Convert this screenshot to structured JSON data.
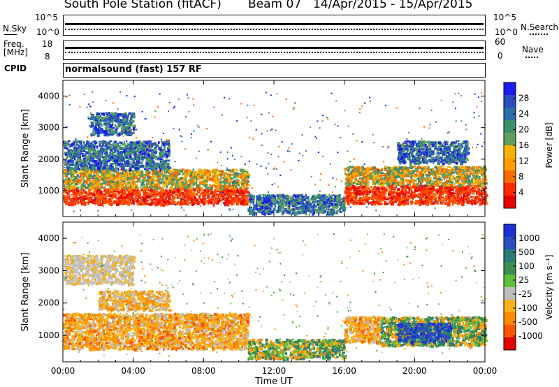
{
  "header": {
    "station": "South Pole Station (fitACF)",
    "beam": "Beam 07",
    "dates": "14/Apr/2015 - 15/Apr/2015"
  },
  "summary_panels": {
    "nsky_label": "N.Sky",
    "nsky_ticks": [
      "10^5",
      "10^0"
    ],
    "nsearch_label": "N.Search",
    "nsearch_ticks": [
      "10^5",
      "10^0"
    ],
    "freq_label_1": "Freq.",
    "freq_label_2": "[MHz]",
    "freq_ticks": [
      "18",
      "8"
    ],
    "nave_label": "Nave",
    "nave_ticks": [
      "60",
      "0"
    ],
    "cpid_label": "CPID",
    "cpid_value": "normalsound (fast) 157 RF"
  },
  "colors": {
    "power_scale": [
      "#1b1bf0",
      "#2a4dbf",
      "#2c6ea8",
      "#3f8f6a",
      "#5fa05a",
      "#f4b400",
      "#ff9c00",
      "#ff6a00",
      "#ff2a00",
      "#e80000"
    ],
    "velocity_scale": [
      "#1a2fd6",
      "#2a4ec0",
      "#2b7a78",
      "#3c8c4f",
      "#5fbf3a",
      "#bdbdbd",
      "#f5b21a",
      "#ff8c00",
      "#ff5500",
      "#e40000"
    ]
  },
  "chart_data": [
    {
      "type": "heatmap",
      "panel": "power",
      "ylabel": "Slant Range [km]",
      "xlabel": "",
      "x_ticks": [
        "00:00",
        "04:00",
        "08:00",
        "12:00",
        "16:00",
        "20:00",
        "00:00"
      ],
      "y_ticks": [
        "1000",
        "2000",
        "3000",
        "4000"
      ],
      "ylim": [
        180,
        4500
      ],
      "xlim_hours": [
        0,
        24
      ],
      "colorbar_label": "Power [dB]",
      "colorbar_ticks": [
        "28",
        "24",
        "20",
        "16",
        "12",
        "8",
        "4"
      ],
      "regions": [
        {
          "t0": 0,
          "t1": 10.5,
          "r0": 600,
          "r1": 1100,
          "level": "high"
        },
        {
          "t0": 0,
          "t1": 10.5,
          "r0": 1100,
          "r1": 1700,
          "level": "mid"
        },
        {
          "t0": 0,
          "t1": 6,
          "r0": 1700,
          "r1": 2600,
          "level": "low"
        },
        {
          "t0": 1.5,
          "t1": 4,
          "r0": 2800,
          "r1": 3500,
          "level": "low"
        },
        {
          "t0": 10.5,
          "t1": 16,
          "r0": 300,
          "r1": 900,
          "level": "low"
        },
        {
          "t0": 16,
          "t1": 24,
          "r0": 600,
          "r1": 1200,
          "level": "high"
        },
        {
          "t0": 16,
          "t1": 24,
          "r0": 1200,
          "r1": 1800,
          "level": "mid"
        },
        {
          "t0": 19,
          "t1": 23,
          "r0": 1900,
          "r1": 2600,
          "level": "low"
        }
      ]
    },
    {
      "type": "heatmap",
      "panel": "velocity",
      "ylabel": "Slant Range [km]",
      "xlabel": "Time UT",
      "x_ticks": [
        "00:00",
        "04:00",
        "08:00",
        "12:00",
        "16:00",
        "20:00",
        "00:00"
      ],
      "y_ticks": [
        "1000",
        "2000",
        "3000",
        "4000"
      ],
      "ylim": [
        180,
        4500
      ],
      "xlim_hours": [
        0,
        24
      ],
      "colorbar_label": "Velocity [m s⁻¹]",
      "colorbar_ticks": [
        "1000",
        "500",
        "100",
        "25",
        "-25",
        "-100",
        "-500",
        "-1000"
      ],
      "regions": [
        {
          "t0": 0,
          "t1": 10.5,
          "r0": 600,
          "r1": 1700,
          "level": "neg"
        },
        {
          "t0": 0,
          "t1": 4,
          "r0": 2600,
          "r1": 3500,
          "level": "zero"
        },
        {
          "t0": 2,
          "t1": 6,
          "r0": 1800,
          "r1": 2400,
          "level": "negsmall"
        },
        {
          "t0": 10.5,
          "t1": 16,
          "r0": 300,
          "r1": 900,
          "level": "pos"
        },
        {
          "t0": 16,
          "t1": 18,
          "r0": 800,
          "r1": 1600,
          "level": "neg"
        },
        {
          "t0": 18,
          "t1": 24,
          "r0": 700,
          "r1": 1600,
          "level": "pos"
        },
        {
          "t0": 19,
          "t1": 22,
          "r0": 800,
          "r1": 1400,
          "level": "posbig"
        }
      ]
    }
  ]
}
